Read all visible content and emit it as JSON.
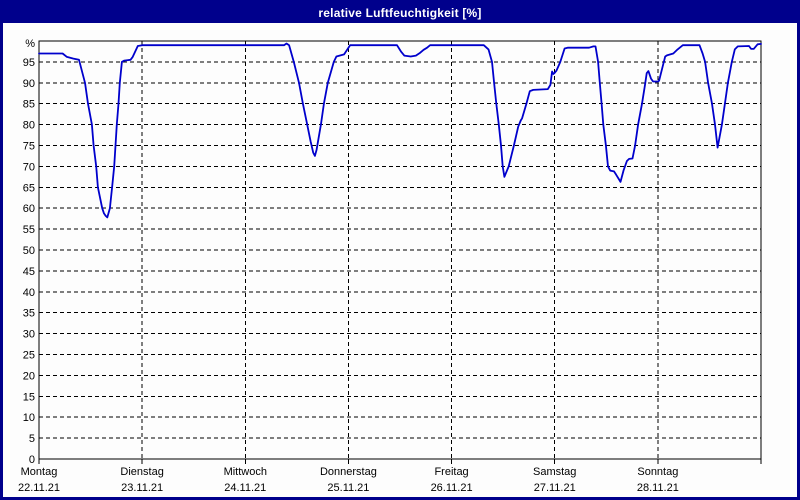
{
  "window": {
    "title": "relative Luftfeuchtigkeit [%]",
    "title_bar_color": "#00008c",
    "background_color": "#fdfdfd"
  },
  "chart_data": {
    "type": "line",
    "title": "relative Luftfeuchtigkeit [%]",
    "ylabel": "%",
    "xlabel": "",
    "ylim": [
      0,
      100
    ],
    "ytick_step": 5,
    "xlim_hours": [
      0,
      168
    ],
    "grid": "dashed",
    "legend": "none",
    "axis_color": "#000000",
    "line_color": "#0000cc",
    "days": [
      {
        "name": "Montag",
        "date": "22.11.21"
      },
      {
        "name": "Dienstag",
        "date": "23.11.21"
      },
      {
        "name": "Mittwoch",
        "date": "24.11.21"
      },
      {
        "name": "Donnerstag",
        "date": "25.11.21"
      },
      {
        "name": "Freitag",
        "date": "26.11.21"
      },
      {
        "name": "Samstag",
        "date": "27.11.21"
      },
      {
        "name": "Sonntag",
        "date": "28.11.21"
      }
    ],
    "series": [
      {
        "name": "relative Luftfeuchtigkeit",
        "unit": "%",
        "points": [
          [
            0,
            97
          ],
          [
            5.5,
            97
          ],
          [
            6.5,
            96.2
          ],
          [
            8,
            95.8
          ],
          [
            9.3,
            95.5
          ],
          [
            10.7,
            90
          ],
          [
            11.4,
            85
          ],
          [
            12.3,
            80
          ],
          [
            12.7,
            75
          ],
          [
            13.3,
            70
          ],
          [
            13.7,
            65
          ],
          [
            14.7,
            60
          ],
          [
            15.1,
            58.8
          ],
          [
            15.5,
            58.2
          ],
          [
            15.9,
            57.8
          ],
          [
            16.5,
            60
          ],
          [
            17,
            65
          ],
          [
            17.5,
            70
          ],
          [
            17.8,
            75
          ],
          [
            18.1,
            80
          ],
          [
            18.5,
            85
          ],
          [
            18.8,
            90
          ],
          [
            19.3,
            95
          ],
          [
            19.8,
            95.3
          ],
          [
            21.3,
            95.5
          ],
          [
            21.8,
            96.2
          ],
          [
            23,
            98.8
          ],
          [
            24,
            99
          ],
          [
            30,
            99
          ],
          [
            40,
            99
          ],
          [
            50,
            99
          ],
          [
            57,
            99
          ],
          [
            57.6,
            99.4
          ],
          [
            58.2,
            99
          ],
          [
            59.3,
            95
          ],
          [
            60.5,
            90
          ],
          [
            61.4,
            85
          ],
          [
            62.4,
            80
          ],
          [
            63.2,
            76
          ],
          [
            63.8,
            73.3
          ],
          [
            64.2,
            72.5
          ],
          [
            64.6,
            74
          ],
          [
            65.6,
            80
          ],
          [
            66.3,
            85
          ],
          [
            67.2,
            90
          ],
          [
            68.6,
            95
          ],
          [
            69.2,
            96.3
          ],
          [
            71,
            96.8
          ],
          [
            72.4,
            99
          ],
          [
            76,
            99
          ],
          [
            83.3,
            99
          ],
          [
            84.2,
            97.5
          ],
          [
            85,
            96.5
          ],
          [
            86.5,
            96.3
          ],
          [
            87.7,
            96.5
          ],
          [
            88.7,
            97.2
          ],
          [
            89.5,
            97.9
          ],
          [
            90.3,
            98.4
          ],
          [
            91,
            99
          ],
          [
            96,
            99
          ],
          [
            100,
            99
          ],
          [
            103.5,
            99
          ],
          [
            104.6,
            98
          ],
          [
            105.4,
            95
          ],
          [
            105.9,
            90
          ],
          [
            106.4,
            85
          ],
          [
            107,
            80
          ],
          [
            107.5,
            75
          ],
          [
            107.9,
            70
          ],
          [
            108.3,
            67.5
          ],
          [
            109.3,
            70
          ],
          [
            110.5,
            75
          ],
          [
            111.5,
            79.5
          ],
          [
            112.1,
            81
          ],
          [
            112.4,
            81.5
          ],
          [
            113.4,
            85
          ],
          [
            114.2,
            88
          ],
          [
            115,
            88.3
          ],
          [
            118.4,
            88.5
          ],
          [
            119,
            89.5
          ],
          [
            119.4,
            92.7
          ],
          [
            119.7,
            92.1
          ],
          [
            120,
            92.4
          ],
          [
            120.4,
            92.9
          ],
          [
            121.3,
            95
          ],
          [
            122.3,
            98.2
          ],
          [
            123,
            98.4
          ],
          [
            128,
            98.4
          ],
          [
            129,
            98.7
          ],
          [
            129.5,
            98.7
          ],
          [
            130.1,
            95
          ],
          [
            130.5,
            90
          ],
          [
            130.9,
            85
          ],
          [
            131.3,
            80
          ],
          [
            131.9,
            75
          ],
          [
            132.4,
            70
          ],
          [
            132.9,
            69
          ],
          [
            133.8,
            68.8
          ],
          [
            134.3,
            68
          ],
          [
            134.9,
            67
          ],
          [
            135.3,
            66.3
          ],
          [
            136,
            69
          ],
          [
            136.8,
            71.3
          ],
          [
            137.3,
            71.8
          ],
          [
            138.1,
            71.9
          ],
          [
            138.7,
            75
          ],
          [
            139.4,
            80
          ],
          [
            140.3,
            85
          ],
          [
            141,
            89.5
          ],
          [
            141.4,
            92.3
          ],
          [
            141.8,
            92.8
          ],
          [
            142.4,
            91
          ],
          [
            142.9,
            90.3
          ],
          [
            144,
            90.3
          ],
          [
            144.3,
            90.5
          ],
          [
            144.9,
            93
          ],
          [
            145.7,
            96.3
          ],
          [
            146.2,
            96.6
          ],
          [
            147.6,
            97
          ],
          [
            148.6,
            98
          ],
          [
            149.8,
            99
          ],
          [
            153.7,
            99
          ],
          [
            154.4,
            97
          ],
          [
            155,
            95
          ],
          [
            155.7,
            90
          ],
          [
            156.6,
            85
          ],
          [
            157.3,
            80
          ],
          [
            157.9,
            74.5
          ],
          [
            158.9,
            80
          ],
          [
            159.6,
            85
          ],
          [
            160.3,
            90
          ],
          [
            161.2,
            95
          ],
          [
            161.9,
            98
          ],
          [
            162.6,
            98.7
          ],
          [
            165.2,
            98.8
          ],
          [
            165.7,
            98.1
          ],
          [
            166.3,
            98.1
          ],
          [
            167.2,
            99.2
          ],
          [
            168,
            99.3
          ]
        ]
      }
    ]
  }
}
